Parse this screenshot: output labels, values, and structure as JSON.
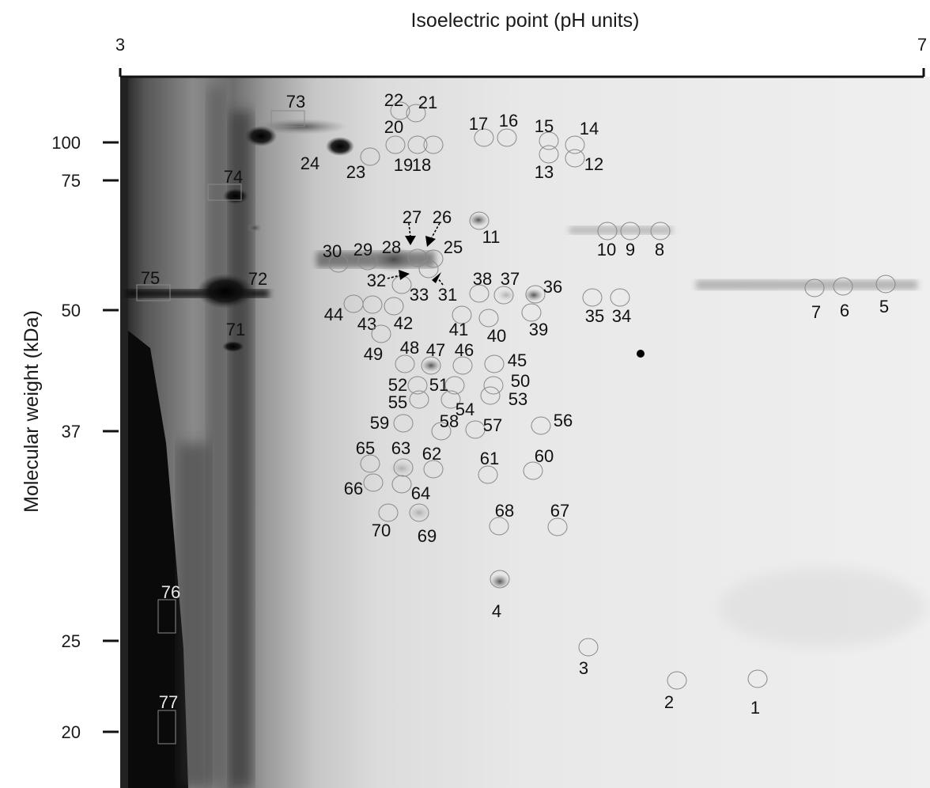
{
  "figure": {
    "x_axis_title": "Isoelectric point (pH units)",
    "y_axis_title": "Molecular weight (kDa)",
    "x_ticks": [
      "3",
      "7"
    ],
    "y_ticks": [
      "100",
      "75",
      "50",
      "37",
      "25",
      "20"
    ]
  },
  "spots": [
    "1",
    "2",
    "3",
    "4",
    "5",
    "6",
    "7",
    "8",
    "9",
    "10",
    "11",
    "12",
    "13",
    "14",
    "15",
    "16",
    "17",
    "18",
    "19",
    "20",
    "21",
    "22",
    "23",
    "24",
    "25",
    "26",
    "27",
    "28",
    "29",
    "30",
    "31",
    "32",
    "33",
    "34",
    "35",
    "36",
    "37",
    "38",
    "39",
    "40",
    "41",
    "42",
    "43",
    "44",
    "45",
    "46",
    "47",
    "48",
    "49",
    "50",
    "51",
    "52",
    "53",
    "54",
    "55",
    "56",
    "57",
    "58",
    "59",
    "60",
    "61",
    "62",
    "63",
    "64",
    "65",
    "66",
    "67",
    "68",
    "69",
    "70",
    "71",
    "72",
    "73",
    "74",
    "75",
    "76",
    "77"
  ],
  "colors": {
    "axis": "#111111",
    "gel_background": "#f2f2f2",
    "spot_outline": "#8a8a8a"
  }
}
